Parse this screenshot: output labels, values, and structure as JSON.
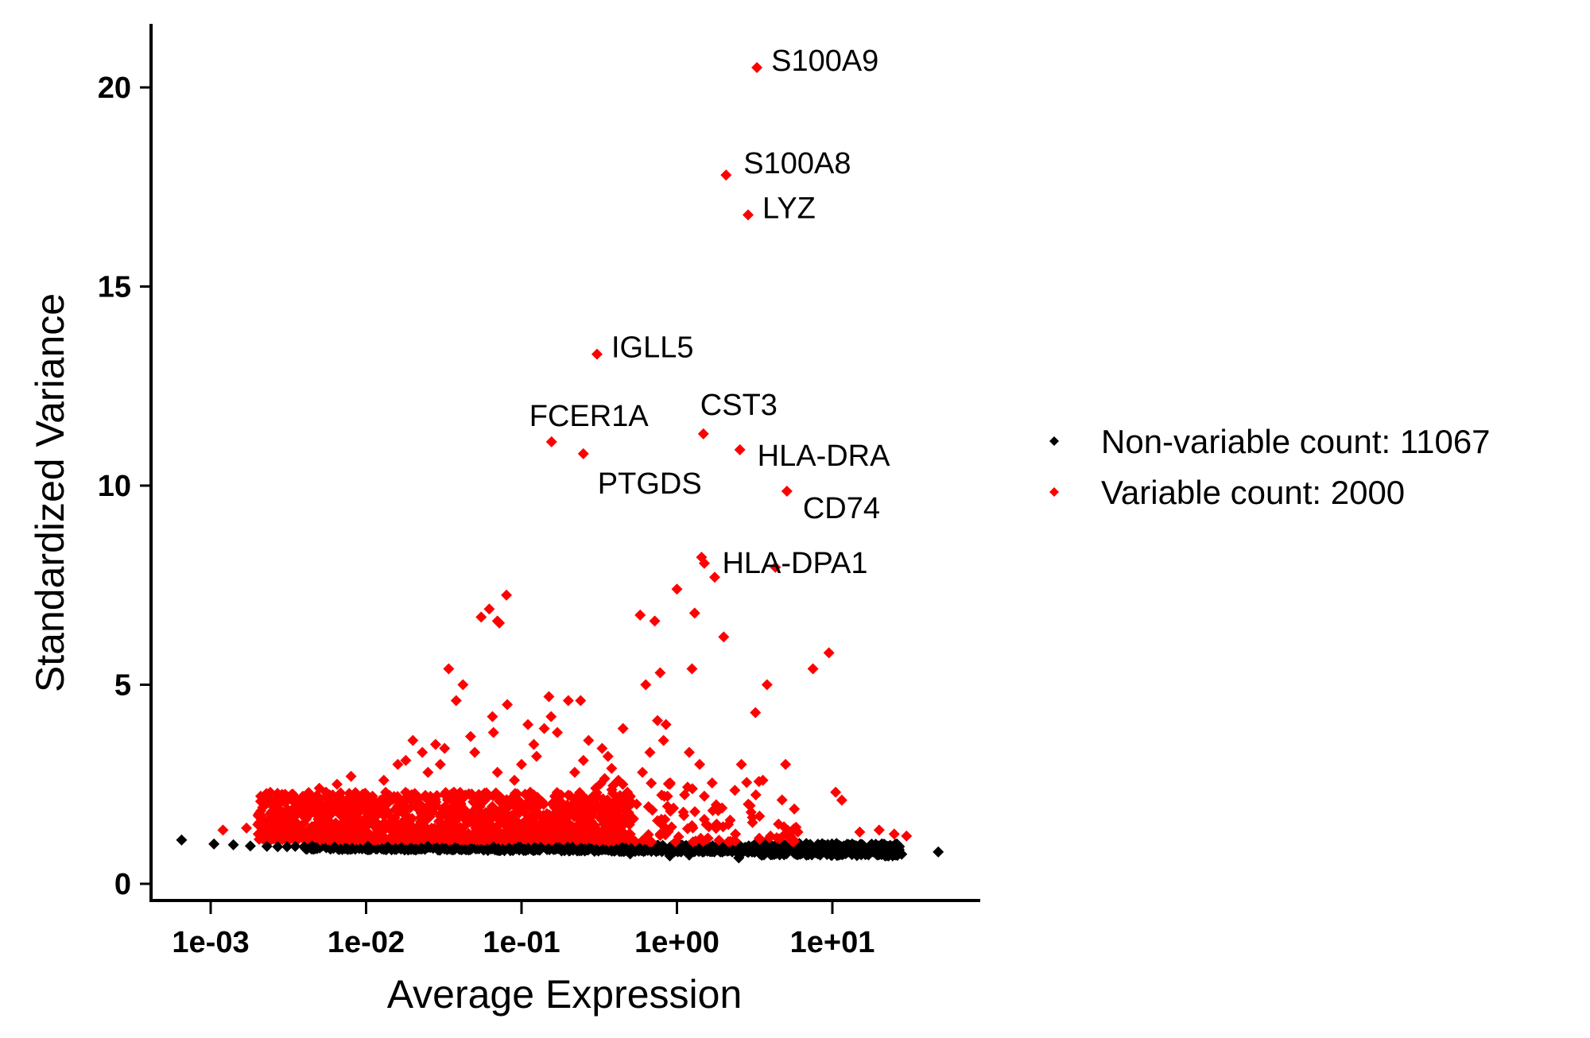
{
  "chart_data": {
    "type": "scatter",
    "title": "",
    "xlabel": "Average Expression",
    "ylabel": "Standardized Variance",
    "xscale": "log10",
    "xlim": [
      0.0005,
      80
    ],
    "ylim": [
      -0.4,
      21.6
    ],
    "x_ticks": [
      {
        "value": 0.001,
        "label": "1e-03"
      },
      {
        "value": 0.01,
        "label": "1e-02"
      },
      {
        "value": 0.1,
        "label": "1e-01"
      },
      {
        "value": 1,
        "label": "1e+00"
      },
      {
        "value": 10,
        "label": "1e+01"
      }
    ],
    "y_ticks": [
      {
        "value": 0,
        "label": "0"
      },
      {
        "value": 5,
        "label": "5"
      },
      {
        "value": 10,
        "label": "10"
      },
      {
        "value": 15,
        "label": "15"
      },
      {
        "value": 20,
        "label": "20"
      }
    ],
    "grid": false,
    "legend_position": "right",
    "legend": [
      {
        "name": "Non-variable count: 11067",
        "color": "#000000"
      },
      {
        "name": "Variable count: 2000",
        "color": "#ff0000"
      }
    ],
    "series": [
      {
        "name": "Non-variable",
        "color": "#000000",
        "count": 11067,
        "points": [
          [
            0.00065,
            1.1
          ],
          [
            0.00105,
            1.0
          ],
          [
            0.0014,
            0.98
          ],
          [
            0.0018,
            0.95
          ],
          [
            0.0023,
            0.94
          ],
          [
            0.0027,
            0.93
          ],
          [
            0.0031,
            0.93
          ],
          [
            0.0035,
            0.94
          ],
          [
            0.004,
            0.93
          ],
          [
            0.0045,
            0.95
          ],
          [
            0.5,
            0.75
          ],
          [
            0.9,
            0.7
          ],
          [
            1.2,
            0.72
          ],
          [
            2.5,
            0.65
          ],
          [
            3.5,
            0.72
          ],
          [
            6.0,
            0.75
          ],
          [
            12,
            0.85
          ],
          [
            20,
            0.95
          ],
          [
            26,
            1.0
          ],
          [
            48,
            0.8
          ]
        ],
        "band": {
          "x_from": 0.004,
          "x_to": 28,
          "y_center_left": 0.95,
          "y_center_right": 0.85,
          "y_spread": 0.17
        }
      },
      {
        "name": "Variable",
        "color": "#ff0000",
        "count": 2000,
        "band": {
          "x_from": 0.002,
          "x_to": 0.5,
          "y_from": 1.1,
          "y_to": 2.3
        },
        "points": [
          [
            0.0012,
            1.35
          ],
          [
            0.0017,
            1.4
          ],
          [
            0.0022,
            1.6
          ],
          [
            0.0022,
            1.4
          ],
          [
            0.0027,
            1.9
          ],
          [
            0.0027,
            2.1
          ],
          [
            0.0035,
            1.9
          ],
          [
            0.004,
            1.8
          ],
          [
            0.005,
            2.4
          ],
          [
            0.0055,
            2.3
          ],
          [
            0.0065,
            2.5
          ],
          [
            0.008,
            2.7
          ],
          [
            0.009,
            2.1
          ],
          [
            0.011,
            2.2
          ],
          [
            0.013,
            2.6
          ],
          [
            0.016,
            3.0
          ],
          [
            0.018,
            3.1
          ],
          [
            0.02,
            3.6
          ],
          [
            0.023,
            3.3
          ],
          [
            0.025,
            2.8
          ],
          [
            0.028,
            3.5
          ],
          [
            0.03,
            3.0
          ],
          [
            0.032,
            3.4
          ],
          [
            0.034,
            5.4
          ],
          [
            0.038,
            4.6
          ],
          [
            0.042,
            5.0
          ],
          [
            0.047,
            3.7
          ],
          [
            0.05,
            3.3
          ],
          [
            0.055,
            6.7
          ],
          [
            0.062,
            6.9
          ],
          [
            0.07,
            6.6
          ],
          [
            0.072,
            6.55
          ],
          [
            0.08,
            7.25
          ],
          [
            0.081,
            4.5
          ],
          [
            0.065,
            4.2
          ],
          [
            0.066,
            3.8
          ],
          [
            0.07,
            2.8
          ],
          [
            0.09,
            2.6
          ],
          [
            0.1,
            3.0
          ],
          [
            0.11,
            4.0
          ],
          [
            0.12,
            3.5
          ],
          [
            0.125,
            3.2
          ],
          [
            0.14,
            3.9
          ],
          [
            0.15,
            4.7
          ],
          [
            0.155,
            4.2
          ],
          [
            0.17,
            3.8
          ],
          [
            0.2,
            4.6
          ],
          [
            0.22,
            2.8
          ],
          [
            0.24,
            4.6
          ],
          [
            0.25,
            3.1
          ],
          [
            0.27,
            3.6
          ],
          [
            0.3,
            2.4
          ],
          [
            0.33,
            3.4
          ],
          [
            0.36,
            3.2
          ],
          [
            0.38,
            2.9
          ],
          [
            0.42,
            2.6
          ],
          [
            0.45,
            3.9
          ],
          [
            0.48,
            2.3
          ],
          [
            0.5,
            2.2
          ],
          [
            0.55,
            2.0
          ],
          [
            0.58,
            6.75
          ],
          [
            0.6,
            2.8
          ],
          [
            0.63,
            5.0
          ],
          [
            0.67,
            3.3
          ],
          [
            0.72,
            6.6
          ],
          [
            0.75,
            4.1
          ],
          [
            0.78,
            5.3
          ],
          [
            0.82,
            3.6
          ],
          [
            0.85,
            4.0
          ],
          [
            0.9,
            2.5
          ],
          [
            0.95,
            1.9
          ],
          [
            1.0,
            7.4
          ],
          [
            1.1,
            1.8
          ],
          [
            1.2,
            3.3
          ],
          [
            1.25,
            5.4
          ],
          [
            1.3,
            6.8
          ],
          [
            1.4,
            3.0
          ],
          [
            1.5,
            2.2
          ],
          [
            1.8,
            1.5
          ],
          [
            2.0,
            6.2
          ],
          [
            2.2,
            1.6
          ],
          [
            2.6,
            3.0
          ],
          [
            3.0,
            1.8
          ],
          [
            3.2,
            4.3
          ],
          [
            3.4,
            1.7
          ],
          [
            3.8,
            5.0
          ],
          [
            4.0,
            1.2
          ],
          [
            4.5,
            1.5
          ],
          [
            5.0,
            3.0
          ],
          [
            6.0,
            1.3
          ],
          [
            7.5,
            5.4
          ],
          [
            9.5,
            5.8
          ],
          [
            10.5,
            2.3
          ],
          [
            11.5,
            2.1
          ],
          [
            15,
            1.3
          ],
          [
            20,
            1.35
          ],
          [
            25,
            1.25
          ],
          [
            30,
            1.2
          ]
        ]
      }
    ],
    "labeled_genes": [
      {
        "gene": "S100A9",
        "x": 3.27,
        "y": 20.5,
        "anchor": "right"
      },
      {
        "gene": "S100A8",
        "x": 2.07,
        "y": 17.8,
        "anchor": "right"
      },
      {
        "gene": "LYZ",
        "x": 2.87,
        "y": 16.8,
        "anchor": "right"
      },
      {
        "gene": "IGLL5",
        "x": 0.306,
        "y": 13.3,
        "anchor": "right"
      },
      {
        "gene": "FCER1A",
        "x": 0.156,
        "y": 11.1,
        "anchor": "above"
      },
      {
        "gene": "PTGDS",
        "x": 0.25,
        "y": 10.8,
        "anchor": "below"
      },
      {
        "gene": "CST3",
        "x": 1.48,
        "y": 11.3,
        "anchor": "above"
      },
      {
        "gene": "HLA-DRA",
        "x": 2.54,
        "y": 10.9,
        "anchor": "right"
      },
      {
        "gene": "CD74",
        "x": 5.1,
        "y": 9.86,
        "anchor": "below-right"
      },
      {
        "gene": "HLA-DPA1",
        "x": 1.44,
        "y": 8.2,
        "anchor": "right"
      }
    ],
    "extra_highlight_points": [
      [
        1.5,
        8.05
      ],
      [
        4.3,
        7.95
      ],
      [
        1.75,
        7.7
      ]
    ]
  }
}
